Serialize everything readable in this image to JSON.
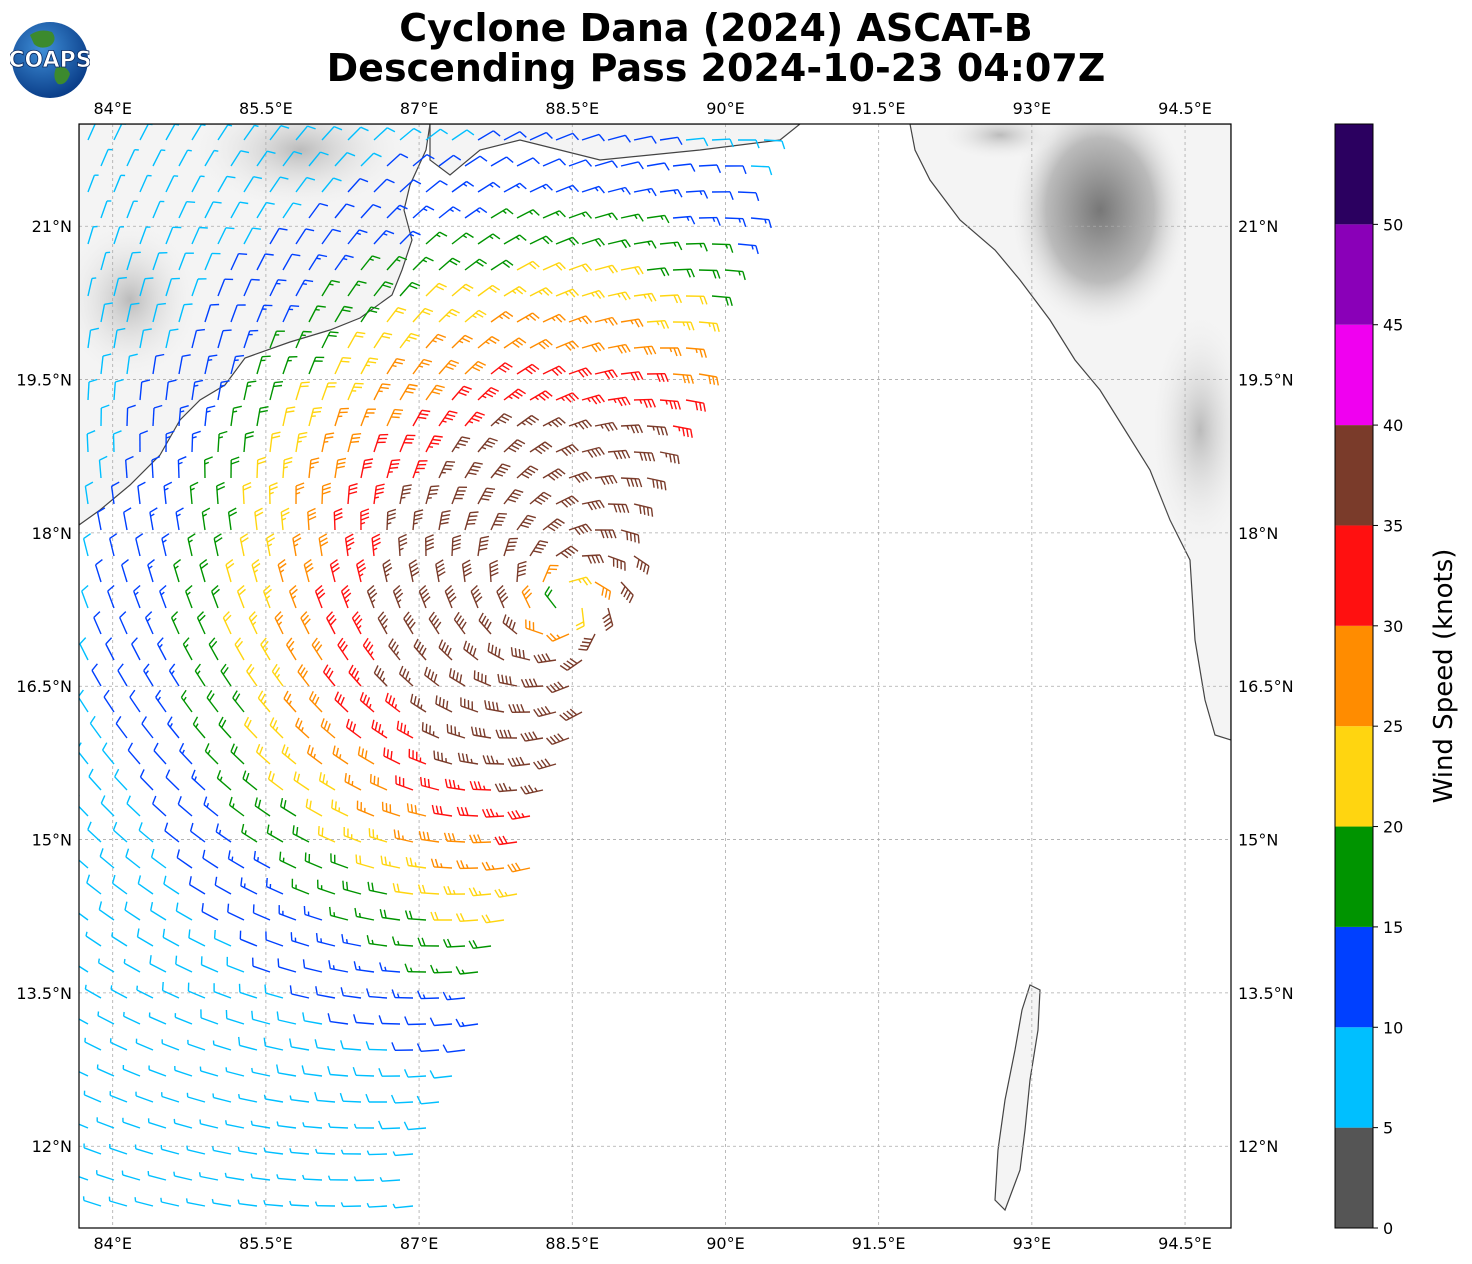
{
  "title_line1": "Cyclone Dana (2024) ASCAT-B",
  "title_line2": "Descending Pass 2024-10-23 04:07Z",
  "logo_text": "COAPS",
  "map": {
    "lon_ticks": [
      "84°E",
      "85.5°E",
      "87°E",
      "88.5°E",
      "90°E",
      "91.5°E",
      "93°E",
      "94.5°E"
    ],
    "lat_ticks": [
      "21°N",
      "19.5°N",
      "18°N",
      "16.5°N",
      "15°N",
      "13.5°N",
      "12°N"
    ],
    "lon_range": [
      83.67,
      94.95
    ],
    "lat_range": [
      11.2,
      22.0
    ],
    "gridlines": true,
    "storm_center": {
      "lon": 88.45,
      "lat": 17.3
    }
  },
  "colorbar": {
    "label": "Wind Speed (knots)",
    "ticks": [
      "0",
      "5",
      "10",
      "15",
      "20",
      "25",
      "30",
      "35",
      "40",
      "45",
      "50"
    ],
    "bins": [
      {
        "min": 0,
        "max": 5,
        "color": "#555555"
      },
      {
        "min": 5,
        "max": 10,
        "color": "#00bfff"
      },
      {
        "min": 10,
        "max": 15,
        "color": "#0040ff"
      },
      {
        "min": 15,
        "max": 20,
        "color": "#009400"
      },
      {
        "min": 20,
        "max": 25,
        "color": "#ffd510"
      },
      {
        "min": 25,
        "max": 30,
        "color": "#ff8c00"
      },
      {
        "min": 30,
        "max": 35,
        "color": "#ff1010"
      },
      {
        "min": 35,
        "max": 40,
        "color": "#7a3b2a"
      },
      {
        "min": 40,
        "max": 45,
        "color": "#f000f0"
      },
      {
        "min": 45,
        "max": 50,
        "color": "#8a00b8"
      },
      {
        "min": 50,
        "max": 55,
        "color": "#2b0060"
      }
    ]
  }
}
